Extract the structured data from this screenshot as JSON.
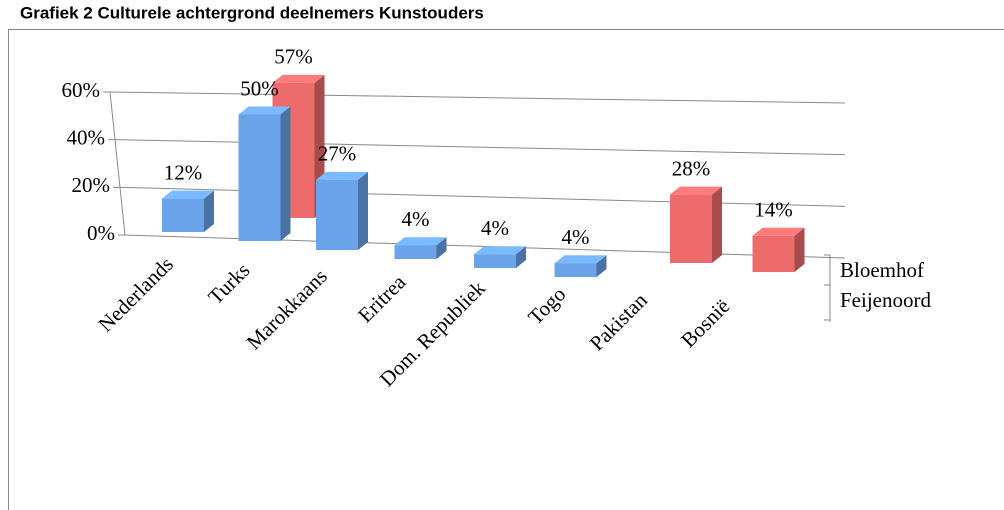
{
  "chart_data": {
    "type": "bar3d",
    "title": "Grafiek 2 Culturele achtergrond deelnemers Kunstouders",
    "categories": [
      "Nederlands",
      "Turks",
      "Marokkaans",
      "Eritrea",
      "Dom. Republiek",
      "Togo",
      "Pakistan",
      "Bosnië"
    ],
    "series": [
      {
        "name": "Bloemhof",
        "color": "#ee6b6b",
        "values": [
          null,
          57,
          null,
          null,
          null,
          null,
          28,
          14
        ],
        "value_labels": [
          null,
          "57%",
          null,
          null,
          null,
          null,
          "28%",
          "14%"
        ]
      },
      {
        "name": "Feijenoord",
        "color": "#6aa3ea",
        "values": [
          12,
          50,
          27,
          4,
          4,
          4,
          null,
          null
        ],
        "value_labels": [
          "12%",
          "50%",
          "27%",
          "4%",
          "4%",
          "4%",
          null,
          null
        ]
      }
    ],
    "ylim": [
      0,
      60
    ],
    "yticks": [
      {
        "value": 0,
        "label": "0%"
      },
      {
        "value": 20,
        "label": "20%"
      },
      {
        "value": 40,
        "label": "40%"
      },
      {
        "value": 60,
        "label": "60%"
      }
    ],
    "grid": true
  }
}
